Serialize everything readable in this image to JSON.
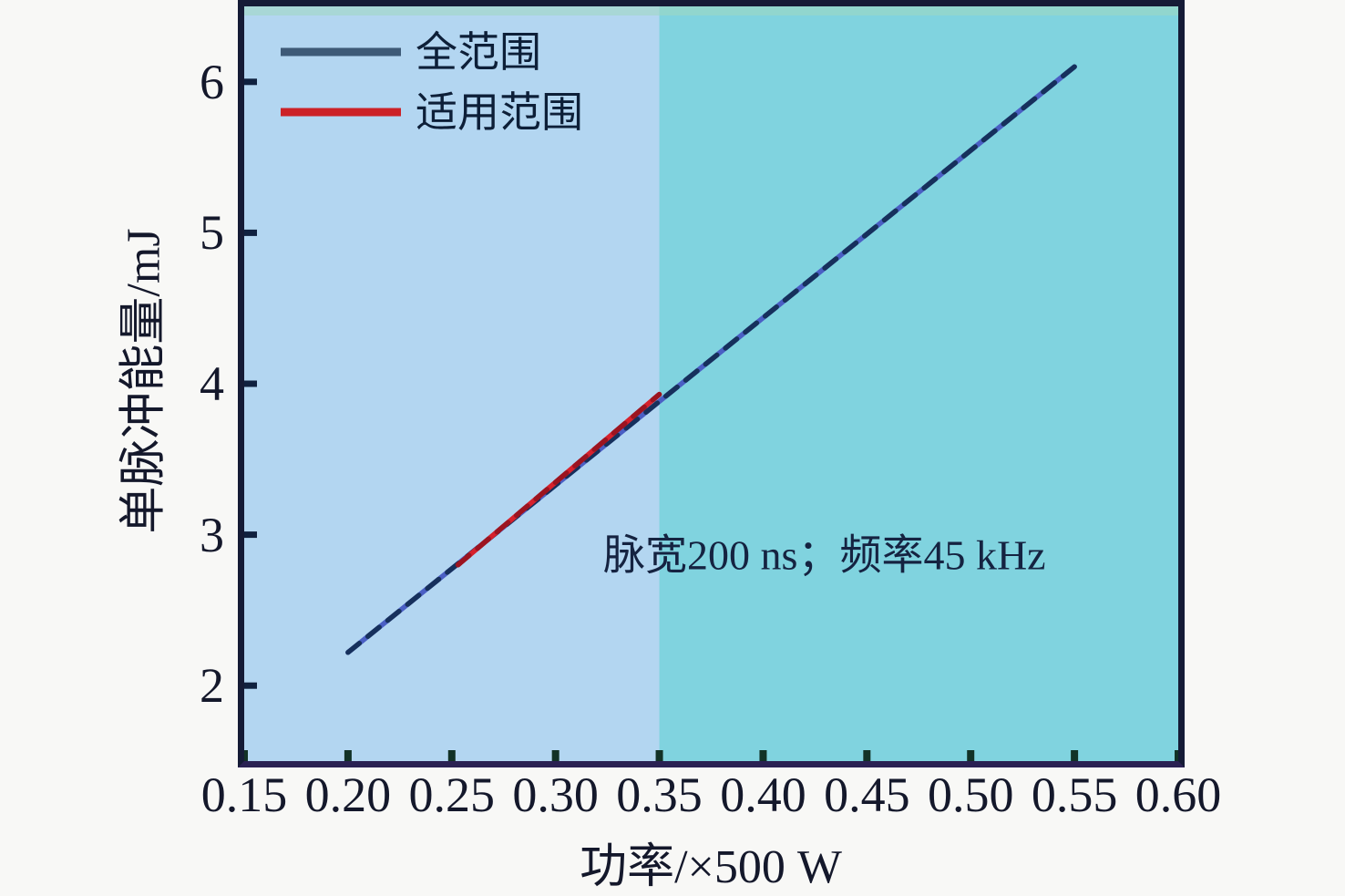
{
  "figure": {
    "background": "#f8f8f6",
    "text_color": "#14182b"
  },
  "chart_data": {
    "type": "line",
    "title": "",
    "xlabel": "功率/×500 W",
    "ylabel": "单脉冲能量/mJ",
    "xlim": [
      0.15,
      0.6
    ],
    "ylim": [
      1.5,
      6.5
    ],
    "grid": false,
    "x_ticks": [
      0.15,
      0.2,
      0.25,
      0.3,
      0.35,
      0.4,
      0.45,
      0.5,
      0.55,
      0.6
    ],
    "x_tick_labels": [
      "0.15",
      "0.20",
      "0.25",
      "0.30",
      "0.35",
      "0.40",
      "0.45",
      "0.50",
      "0.55",
      "0.60"
    ],
    "y_ticks": [
      2,
      3,
      4,
      5,
      6
    ],
    "y_tick_labels": [
      "2",
      "3",
      "4",
      "5",
      "6"
    ],
    "annotation": {
      "text": "脉宽200 ns；频率45 kHz",
      "x": 0.323,
      "y": 2.77,
      "color": "#152341"
    },
    "legend": {
      "position": "upper-left",
      "items": [
        {
          "label": "全范围",
          "color": "#3e5a77"
        },
        {
          "label": "适用范围",
          "color": "#cc2127"
        }
      ]
    },
    "regions": [
      {
        "name": "low-power-region",
        "from": 0.15,
        "to": 0.35,
        "color": "#b3d6f1"
      },
      {
        "name": "high-power-region",
        "from": 0.35,
        "to": 0.6,
        "color": "#80d3df"
      }
    ],
    "top_strip_color": "#9fd9c0",
    "series": [
      {
        "name": "全范围",
        "base_color": "#4a5fc4",
        "dash_color": "#16305c",
        "x": [
          0.2,
          0.55
        ],
        "y": [
          2.22,
          6.1
        ]
      },
      {
        "name": "适用范围",
        "base_color": "#d6212c",
        "dash_color": "#9c1420",
        "x": [
          0.253,
          0.35
        ],
        "y": [
          2.8,
          3.93
        ]
      }
    ]
  }
}
